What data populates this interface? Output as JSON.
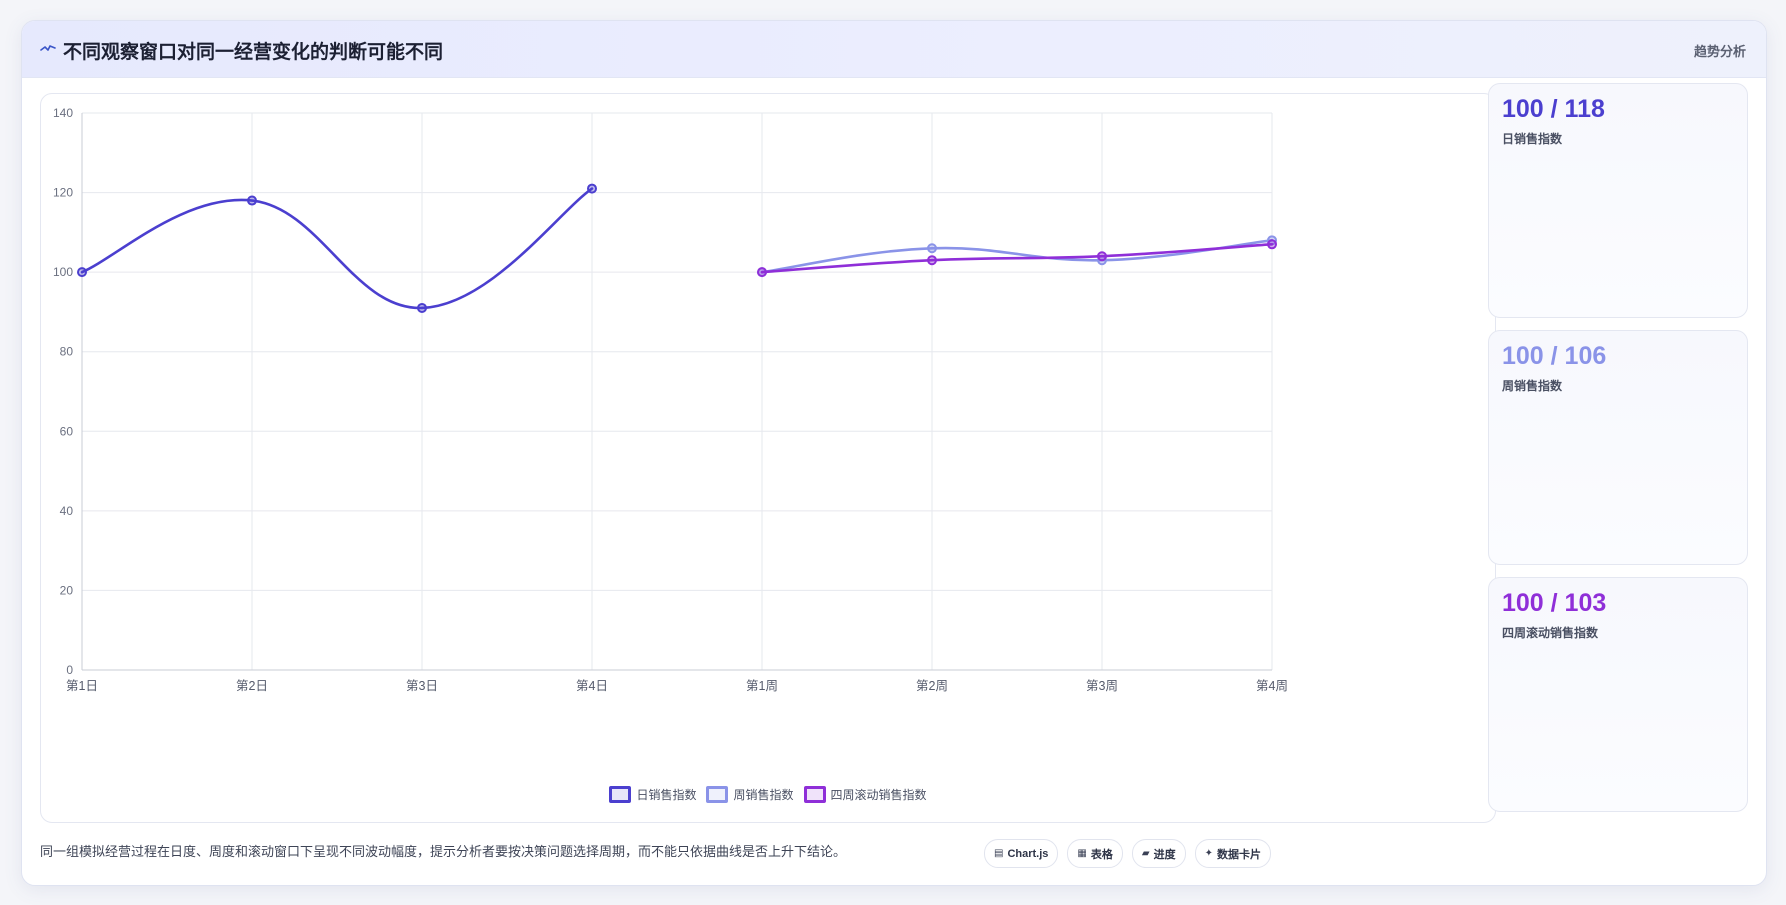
{
  "header": {
    "icon": "trend-line-icon",
    "title": "不同观察窗口对同一经营变化的判断可能不同",
    "tag": "趋势分析"
  },
  "kpis": [
    {
      "value": "100 / 118",
      "label": "日销售指数",
      "color": "#4b3fcf"
    },
    {
      "value": "100 / 106",
      "label": "周销售指数",
      "color": "#8a93e8"
    },
    {
      "value": "100 / 103",
      "label": "四周滚动销售指数",
      "color": "#8f2fd8"
    }
  ],
  "footer": {
    "note": "同一组模拟经营过程在日度、周度和滚动窗口下呈现不同波动幅度，提示分析者要按决策问题选择周期，而不能只依据曲线是否上升下结论。",
    "chips": [
      {
        "icon": "chart-icon",
        "glyph": "▤",
        "label": "Chart.js"
      },
      {
        "icon": "table-icon",
        "glyph": "▦",
        "label": "表格"
      },
      {
        "icon": "progress-icon",
        "glyph": "▰",
        "label": "进度"
      },
      {
        "icon": "sparkle-icon",
        "glyph": "✦",
        "label": "数据卡片"
      }
    ]
  },
  "chart_data": {
    "type": "line",
    "categories": [
      "第1日",
      "第2日",
      "第3日",
      "第4日",
      "第1周",
      "第2周",
      "第3周",
      "第4周"
    ],
    "ylim": [
      0,
      140
    ],
    "yticks": [
      0,
      20,
      40,
      60,
      80,
      100,
      120,
      140
    ],
    "grid": true,
    "legend_position": "bottom",
    "series": [
      {
        "name": "日销售指数",
        "color": "#4b3fcf",
        "values": [
          100,
          118,
          91,
          121,
          null,
          null,
          null,
          null
        ]
      },
      {
        "name": "周销售指数",
        "color": "#8a93e8",
        "values": [
          null,
          null,
          null,
          null,
          100,
          106,
          103,
          108
        ]
      },
      {
        "name": "四周滚动销售指数",
        "color": "#8f2fd8",
        "values": [
          null,
          null,
          null,
          null,
          100,
          103,
          104,
          107
        ]
      }
    ]
  }
}
